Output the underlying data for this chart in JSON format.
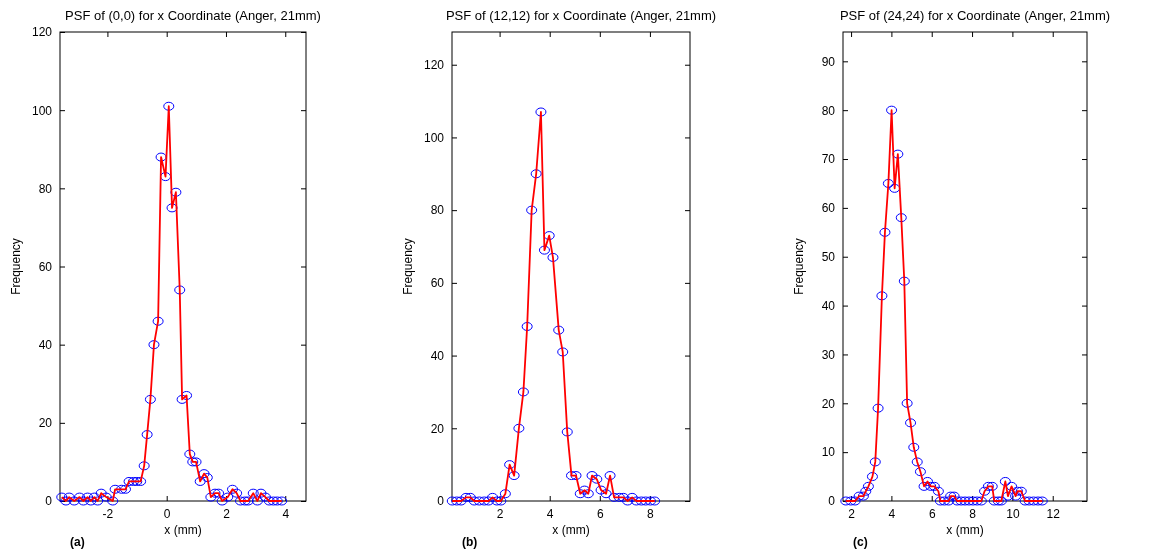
{
  "chart_data": [
    {
      "type": "line",
      "title": "PSF of (0,0) for x Coordinate (Anger, 21mm)",
      "xlabel": "x (mm)",
      "ylabel": "Frequency",
      "annotations": [
        "(a)"
      ],
      "xlim": [
        -3.6,
        4.7
      ],
      "ylim": [
        0,
        120
      ],
      "xticks": [
        -2,
        0,
        2,
        4
      ],
      "yticks": [
        0,
        20,
        40,
        60,
        80,
        100,
        120
      ],
      "series": [
        {
          "type": "line",
          "color": "#ff0000",
          "x": [
            -3.54,
            -3.4,
            -3.29,
            -3.12,
            -2.94,
            -2.81,
            -2.67,
            -2.56,
            -2.44,
            -2.33,
            -2.21,
            -2.04,
            -1.82,
            -1.74,
            -1.52,
            -1.39,
            -1.27,
            -1.12,
            -1.01,
            -0.88,
            -0.76,
            -0.66,
            -0.55,
            -0.43,
            -0.29,
            -0.19,
            -0.04,
            0.07,
            0.18,
            0.31,
            0.44,
            0.52,
            0.67,
            0.78,
            0.88,
            0.99,
            1.13,
            1.26,
            1.37,
            1.49,
            1.63,
            1.75,
            1.87,
            2.06,
            2.22,
            2.36,
            2.49,
            2.64,
            2.75,
            2.92,
            3.06,
            3.18,
            3.33,
            3.46,
            3.6,
            3.73,
            3.88
          ],
          "values": [
            1,
            0,
            1,
            0,
            1,
            0,
            1,
            0,
            1,
            0,
            2,
            1,
            0,
            3,
            3,
            3,
            5,
            5,
            5,
            5,
            9,
            17,
            26,
            40,
            46,
            88,
            83,
            101,
            75,
            79,
            54,
            26,
            27,
            12,
            10,
            10,
            5,
            7,
            6,
            1,
            2,
            2,
            0,
            1,
            3,
            2,
            0,
            0,
            0,
            2,
            0,
            2,
            1,
            0,
            0,
            0,
            0
          ]
        },
        {
          "type": "scatter",
          "color": "#0000ff",
          "marker": "circle",
          "x": [
            -3.54,
            -3.4,
            -3.29,
            -3.12,
            -2.94,
            -2.81,
            -2.67,
            -2.56,
            -2.44,
            -2.33,
            -2.21,
            -2.04,
            -1.82,
            -1.74,
            -1.52,
            -1.39,
            -1.27,
            -1.12,
            -1.01,
            -0.88,
            -0.76,
            -0.66,
            -0.55,
            -0.43,
            -0.29,
            -0.19,
            -0.04,
            0.07,
            0.18,
            0.31,
            0.44,
            0.52,
            0.67,
            0.78,
            0.88,
            0.99,
            1.13,
            1.26,
            1.37,
            1.49,
            1.63,
            1.75,
            1.87,
            2.06,
            2.22,
            2.36,
            2.49,
            2.64,
            2.75,
            2.92,
            3.06,
            3.18,
            3.33,
            3.46,
            3.6,
            3.73,
            3.88
          ],
          "values": [
            1,
            0,
            1,
            0,
            1,
            0,
            1,
            0,
            1,
            0,
            2,
            1,
            0,
            3,
            3,
            3,
            5,
            5,
            5,
            5,
            9,
            17,
            26,
            40,
            46,
            88,
            83,
            101,
            75,
            79,
            54,
            26,
            27,
            12,
            10,
            10,
            5,
            7,
            6,
            1,
            2,
            2,
            0,
            1,
            3,
            2,
            0,
            0,
            0,
            2,
            0,
            2,
            1,
            0,
            0,
            0,
            0
          ]
        }
      ]
    },
    {
      "type": "line",
      "title": "PSF of (12,12) for x Coordinate (Anger, 21mm)",
      "xlabel": "x (mm)",
      "ylabel": "Frequency",
      "annotations": [
        "(b)"
      ],
      "xlim": [
        0.1,
        9.6
      ],
      "ylim": [
        0,
        129
      ],
      "xticks": [
        2,
        4,
        6,
        8
      ],
      "yticks": [
        0,
        20,
        40,
        60,
        80,
        100,
        120
      ],
      "series": [
        {
          "type": "line",
          "color": "#ff0000",
          "x": [
            0.11,
            0.29,
            0.46,
            0.66,
            0.83,
            0.99,
            1.19,
            1.39,
            1.56,
            1.72,
            1.89,
            2.05,
            2.23,
            2.4,
            2.58,
            2.77,
            2.95,
            3.1,
            3.28,
            3.46,
            3.65,
            3.79,
            3.98,
            4.13,
            4.36,
            4.52,
            4.7,
            4.87,
            5.05,
            5.22,
            5.39,
            5.54,
            5.69,
            5.88,
            6.05,
            6.25,
            6.41,
            6.57,
            6.78,
            6.94,
            7.11,
            7.29,
            7.46,
            7.66,
            7.83,
            8.02,
            8.19
          ],
          "values": [
            0,
            0,
            0,
            1,
            1,
            0,
            0,
            0,
            0,
            1,
            0,
            0,
            2,
            10,
            7,
            20,
            30,
            48,
            80,
            90,
            107,
            69,
            73,
            67,
            47,
            41,
            19,
            7,
            7,
            2,
            3,
            2,
            7,
            6,
            3,
            2,
            7,
            1,
            1,
            1,
            0,
            1,
            0,
            0,
            0,
            0,
            0
          ]
        },
        {
          "type": "scatter",
          "color": "#0000ff",
          "marker": "circle",
          "x": [
            0.11,
            0.29,
            0.46,
            0.66,
            0.83,
            0.99,
            1.19,
            1.39,
            1.56,
            1.72,
            1.89,
            2.05,
            2.23,
            2.4,
            2.58,
            2.77,
            2.95,
            3.1,
            3.28,
            3.46,
            3.65,
            3.79,
            3.98,
            4.13,
            4.36,
            4.52,
            4.7,
            4.87,
            5.05,
            5.22,
            5.39,
            5.54,
            5.69,
            5.88,
            6.05,
            6.25,
            6.41,
            6.57,
            6.78,
            6.94,
            7.11,
            7.29,
            7.46,
            7.66,
            7.83,
            8.02,
            8.19
          ],
          "values": [
            0,
            0,
            0,
            1,
            1,
            0,
            0,
            0,
            0,
            1,
            0,
            0,
            2,
            10,
            7,
            20,
            30,
            48,
            80,
            90,
            107,
            69,
            73,
            67,
            47,
            41,
            19,
            7,
            7,
            2,
            3,
            2,
            7,
            6,
            3,
            2,
            7,
            1,
            1,
            1,
            0,
            1,
            0,
            0,
            0,
            0,
            0
          ]
        }
      ]
    },
    {
      "type": "line",
      "title": "PSF of (24,24) for x Coordinate (Anger, 21mm)",
      "xlabel": "x (mm)",
      "ylabel": "Frequency",
      "annotations": [
        "(c)"
      ],
      "xlim": [
        1.6,
        13.7
      ],
      "ylim": [
        0,
        96
      ],
      "xticks": [
        2,
        4,
        6,
        8,
        10,
        12
      ],
      "yticks": [
        0,
        10,
        20,
        30,
        40,
        50,
        60,
        70,
        80,
        90
      ],
      "series": [
        {
          "type": "line",
          "color": "#ff0000",
          "x": [
            1.74,
            1.99,
            2.2,
            2.4,
            2.61,
            2.73,
            2.86,
            3.06,
            3.2,
            3.34,
            3.53,
            3.68,
            3.85,
            4.01,
            4.16,
            4.32,
            4.49,
            4.64,
            4.78,
            4.95,
            5.11,
            5.28,
            5.44,
            5.62,
            5.79,
            5.95,
            6.13,
            6.33,
            6.43,
            6.63,
            6.84,
            6.94,
            7.11,
            7.26,
            7.46,
            7.65,
            7.85,
            8.05,
            8.25,
            8.46,
            8.62,
            8.81,
            9.0,
            9.1,
            9.3,
            9.45,
            9.65,
            9.78,
            9.96,
            10.16,
            10.25,
            10.44,
            10.63,
            10.83,
            11.05,
            11.27,
            11.48
          ],
          "values": [
            0,
            0,
            0,
            1,
            1,
            2,
            3,
            5,
            8,
            19,
            42,
            55,
            65,
            80,
            64,
            71,
            58,
            45,
            20,
            16,
            11,
            8,
            6,
            3,
            4,
            3,
            3,
            2,
            0,
            0,
            0,
            1,
            1,
            0,
            0,
            0,
            0,
            0,
            0,
            0,
            2,
            3,
            3,
            0,
            0,
            0,
            4,
            1,
            3,
            1,
            2,
            2,
            0,
            0,
            0,
            0,
            0
          ]
        },
        {
          "type": "scatter",
          "color": "#0000ff",
          "marker": "circle",
          "x": [
            1.74,
            1.99,
            2.2,
            2.4,
            2.61,
            2.73,
            2.86,
            3.06,
            3.2,
            3.34,
            3.53,
            3.68,
            3.85,
            4.01,
            4.16,
            4.32,
            4.49,
            4.64,
            4.78,
            4.95,
            5.11,
            5.28,
            5.44,
            5.62,
            5.79,
            5.95,
            6.13,
            6.33,
            6.43,
            6.63,
            6.84,
            6.94,
            7.11,
            7.26,
            7.46,
            7.65,
            7.85,
            8.05,
            8.25,
            8.46,
            8.62,
            8.81,
            9.0,
            9.1,
            9.3,
            9.45,
            9.65,
            9.78,
            9.96,
            10.16,
            10.25,
            10.44,
            10.63,
            10.83,
            11.05,
            11.27,
            11.48
          ],
          "values": [
            0,
            0,
            0,
            1,
            1,
            2,
            3,
            5,
            8,
            19,
            42,
            55,
            65,
            80,
            64,
            71,
            58,
            45,
            20,
            16,
            11,
            8,
            6,
            3,
            4,
            3,
            3,
            2,
            0,
            0,
            0,
            1,
            1,
            0,
            0,
            0,
            0,
            0,
            0,
            0,
            2,
            3,
            3,
            0,
            0,
            0,
            4,
            1,
            3,
            1,
            2,
            2,
            0,
            0,
            0,
            0,
            0
          ]
        }
      ]
    }
  ]
}
